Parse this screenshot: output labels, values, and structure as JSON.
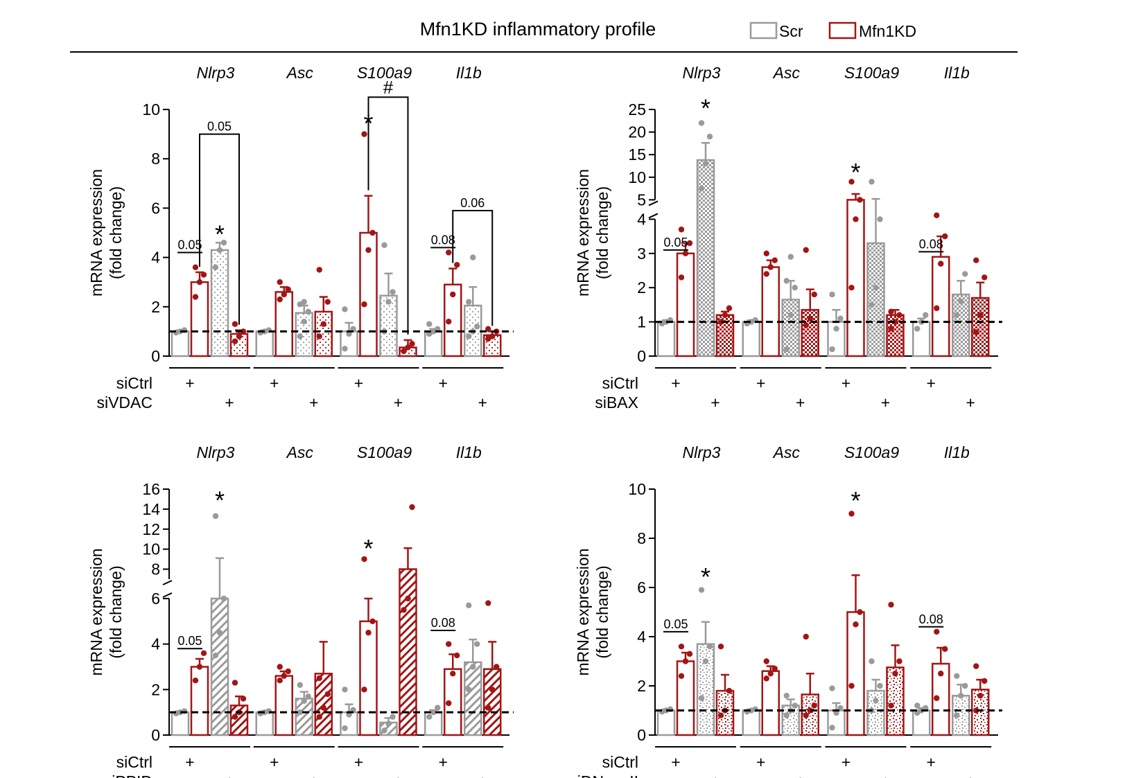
{
  "figure": {
    "title": "Mfn1KD inflammatory profile",
    "legend": [
      {
        "label": "Scr",
        "color": "#888888"
      },
      {
        "label": "Mfn1KD",
        "color": "#a31515"
      }
    ],
    "ylabel_line1": "mRNA expression",
    "ylabel_line2": "(fold change)",
    "row_label_ctrl": "siCtrl",
    "plus": "+"
  },
  "colors": {
    "scr": "#9a9a9a",
    "kd": "#a31515",
    "axis": "#000000"
  },
  "chart_data": [
    {
      "type": "bar",
      "panel": "top-left",
      "genes": [
        "Nlrp3",
        "Asc",
        "S100a9",
        "Il1b"
      ],
      "conditions": [
        "siCtrl",
        "siVDAC"
      ],
      "treatment_label": "siVDAC",
      "pattern": "dots",
      "ylim": [
        0,
        10
      ],
      "yticks": [
        0,
        2,
        4,
        6,
        8,
        10
      ],
      "baseline": 1,
      "series_order": [
        "Scr siCtrl",
        "Mfn1KD siCtrl",
        "Scr treated",
        "Mfn1KD treated"
      ],
      "values": [
        [
          1.0,
          3.0,
          4.3,
          0.9
        ],
        [
          1.0,
          2.6,
          1.75,
          1.8
        ],
        [
          1.0,
          5.0,
          2.45,
          0.35
        ],
        [
          1.0,
          2.9,
          2.05,
          0.85
        ]
      ],
      "errors": [
        [
          0.05,
          0.4,
          0.3,
          0.15
        ],
        [
          0.05,
          0.2,
          0.3,
          0.6
        ],
        [
          0.35,
          1.5,
          0.9,
          0.3
        ],
        [
          0.1,
          0.65,
          0.75,
          0.15
        ]
      ],
      "points": [
        [
          [
            0.95,
            1.0,
            1.05
          ],
          [
            2.4,
            3.0,
            3.3,
            3.6
          ],
          [
            3.6,
            4.3,
            4.6
          ],
          [
            0.6,
            0.8,
            1.0,
            1.3
          ]
        ],
        [
          [
            0.95,
            1.0,
            1.05
          ],
          [
            2.3,
            2.5,
            2.7,
            3.0
          ],
          [
            0.8,
            1.4,
            1.8,
            2.1,
            2.2
          ],
          [
            0.8,
            1.3,
            2.2,
            3.5
          ]
        ],
        [
          [
            0.3,
            0.9,
            1.1,
            1.9
          ],
          [
            2.1,
            4.3,
            5.0,
            9.0
          ],
          [
            1.0,
            2.2,
            2.6,
            4.5
          ],
          [
            0.2,
            0.35,
            0.5
          ]
        ],
        [
          [
            0.9,
            1.0,
            1.1,
            1.3
          ],
          [
            1.4,
            2.5,
            3.7,
            4.2
          ],
          [
            0.8,
            1.0,
            1.2,
            2.2,
            4.0
          ],
          [
            0.7,
            0.8,
            1.0,
            1.1
          ]
        ]
      ],
      "annotations": [
        {
          "text": "0.05",
          "gene": 0,
          "type": "underline",
          "y": 4.2
        },
        {
          "text": "0.05",
          "gene": 0,
          "type": "bracket",
          "y": 9.0,
          "from": 1,
          "to": 3
        },
        {
          "text": "*",
          "gene": 0,
          "bar": 2,
          "y": 4.7
        },
        {
          "text": "*",
          "gene": 2,
          "bar": 1,
          "y": 9.2
        },
        {
          "text": "#",
          "gene": 2,
          "type": "bracket",
          "y": 10.5,
          "from": 1,
          "to": 3
        },
        {
          "text": "0.08",
          "gene": 3,
          "type": "underline",
          "y": 4.4
        },
        {
          "text": "0.06",
          "gene": 3,
          "type": "bracket",
          "y": 5.9,
          "from": 1,
          "to": 3
        }
      ]
    },
    {
      "type": "bar",
      "panel": "top-right",
      "genes": [
        "Nlrp3",
        "Asc",
        "S100a9",
        "Il1b"
      ],
      "conditions": [
        "siCtrl",
        "siBAX"
      ],
      "treatment_label": "siBAX",
      "pattern": "checker",
      "broken_axis": true,
      "ylim_lower": [
        0,
        4
      ],
      "ylim_upper": [
        5,
        25
      ],
      "yticks_lower": [
        0,
        1,
        2,
        3,
        4
      ],
      "yticks_upper": [
        5,
        10,
        15,
        20,
        25
      ],
      "baseline": 1,
      "values": [
        [
          1.0,
          3.0,
          13.8,
          1.2
        ],
        [
          1.0,
          2.6,
          1.65,
          1.35
        ],
        [
          1.0,
          5.0,
          3.3,
          1.2
        ],
        [
          1.0,
          2.9,
          1.8,
          1.7
        ]
      ],
      "errors": [
        [
          0.05,
          0.3,
          3.8,
          0.1
        ],
        [
          0.05,
          0.2,
          0.55,
          0.6
        ],
        [
          0.35,
          1.3,
          1.9,
          0.15
        ],
        [
          0.1,
          0.6,
          0.4,
          0.45
        ]
      ],
      "points": [
        [
          [
            0.95,
            1.0,
            1.05
          ],
          [
            2.3,
            3.0,
            3.3,
            3.7
          ],
          [
            7.5,
            13.0,
            19.0,
            22.0
          ],
          [
            1.0,
            1.2,
            1.4
          ]
        ],
        [
          [
            0.95,
            1.0,
            1.05
          ],
          [
            2.4,
            2.6,
            2.8,
            3.0
          ],
          [
            0.2,
            1.2,
            2.0,
            2.2,
            2.9
          ],
          [
            0.9,
            1.1,
            1.8,
            3.1
          ]
        ],
        [
          [
            0.2,
            0.8,
            1.1,
            1.8
          ],
          [
            2.0,
            4.0,
            5.0,
            9.0
          ],
          [
            1.5,
            2.0,
            4.0,
            9.0
          ],
          [
            0.8,
            1.0,
            1.2,
            1.3
          ]
        ],
        [
          [
            0.8,
            1.0,
            1.2
          ],
          [
            1.4,
            2.7,
            3.5,
            4.2
          ],
          [
            1.2,
            1.6,
            2.4
          ],
          [
            0.7,
            1.2,
            2.3,
            2.8
          ]
        ]
      ],
      "annotations": [
        {
          "text": "0.05",
          "gene": 0,
          "type": "underline",
          "y": 3.1
        },
        {
          "text": "*",
          "gene": 0,
          "bar": 2,
          "y": 24
        },
        {
          "text": "*",
          "gene": 2,
          "bar": 1,
          "y": 9.8
        },
        {
          "text": "0.08",
          "gene": 3,
          "type": "underline",
          "y": 3.05
        }
      ]
    },
    {
      "type": "bar",
      "panel": "bottom-left",
      "genes": [
        "Nlrp3",
        "Asc",
        "S100a9",
        "Il1b"
      ],
      "conditions": [
        "siCtrl",
        "siPPID"
      ],
      "treatment_label": "siPPID",
      "pattern": "hatch",
      "broken_axis": true,
      "ylim_lower": [
        0,
        6
      ],
      "ylim_upper": [
        7,
        16
      ],
      "yticks_lower": [
        0,
        2,
        4,
        6
      ],
      "yticks_upper": [
        8,
        10,
        12,
        14,
        16
      ],
      "baseline": 1,
      "values": [
        [
          1.0,
          3.0,
          6.0,
          1.3
        ],
        [
          1.0,
          2.6,
          1.6,
          2.7
        ],
        [
          1.0,
          5.0,
          0.55,
          8.0
        ],
        [
          1.0,
          2.9,
          3.2,
          2.9
        ]
      ],
      "errors": [
        [
          0.05,
          0.35,
          3.1,
          0.4
        ],
        [
          0.05,
          0.2,
          0.3,
          1.4
        ],
        [
          0.35,
          1.0,
          0.2,
          2.1
        ],
        [
          0.1,
          0.65,
          1.0,
          1.2
        ]
      ],
      "points": [
        [
          [
            0.95,
            1.0,
            1.05
          ],
          [
            2.4,
            3.0,
            3.6
          ],
          [
            3.5,
            4.5,
            6.0,
            13.3
          ],
          [
            0.8,
            1.0,
            1.6,
            2.3
          ]
        ],
        [
          [
            0.95,
            1.0,
            1.05
          ],
          [
            2.4,
            2.6,
            2.8,
            3.0
          ],
          [
            1.0,
            1.5,
            1.7,
            2.2
          ],
          [
            0.8,
            1.2,
            1.8,
            2.5
          ]
        ],
        [
          [
            0.3,
            0.9,
            1.1,
            2.0
          ],
          [
            2.0,
            4.5,
            5.0,
            9.0
          ],
          [
            0.2,
            0.5,
            0.8
          ],
          [
            5.5,
            6.0,
            14.2
          ]
        ],
        [
          [
            0.8,
            1.0,
            1.2
          ],
          [
            1.4,
            2.7,
            3.5,
            4.0
          ],
          [
            2.0,
            3.0,
            4.0,
            5.7
          ],
          [
            1.2,
            2.0,
            3.0,
            5.8
          ]
        ]
      ],
      "annotations": [
        {
          "text": "0.05",
          "gene": 0,
          "type": "underline",
          "y": 3.8
        },
        {
          "text": "*",
          "gene": 0,
          "bar": 2,
          "y": 14.3
        },
        {
          "text": "*",
          "gene": 2,
          "bar": 1,
          "y": 9.5
        },
        {
          "text": "0.08",
          "gene": 3,
          "type": "underline",
          "y": 4.6
        }
      ]
    },
    {
      "type": "bar",
      "panel": "bottom-right",
      "genes": [
        "Nlrp3",
        "Asc",
        "S100a9",
        "Il1b"
      ],
      "conditions": [
        "siCtrl",
        "siDNaseII"
      ],
      "treatment_label": "siDNaseII",
      "pattern": "speckle",
      "ylim": [
        0,
        10
      ],
      "yticks": [
        0,
        2,
        4,
        6,
        8,
        10
      ],
      "baseline": 1,
      "values": [
        [
          1.0,
          3.0,
          3.7,
          1.8
        ],
        [
          1.0,
          2.6,
          1.2,
          1.65
        ],
        [
          1.0,
          5.0,
          1.8,
          2.75
        ],
        [
          1.0,
          2.9,
          1.6,
          1.85
        ]
      ],
      "errors": [
        [
          0.05,
          0.35,
          0.9,
          0.65
        ],
        [
          0.05,
          0.2,
          0.25,
          0.85
        ],
        [
          0.3,
          1.5,
          0.45,
          0.9
        ],
        [
          0.1,
          0.65,
          0.45,
          0.4
        ]
      ],
      "points": [
        [
          [
            0.95,
            1.0,
            1.05
          ],
          [
            2.4,
            3.0,
            3.3,
            3.6
          ],
          [
            1.5,
            3.0,
            3.6,
            5.9
          ],
          [
            0.8,
            1.0,
            1.8,
            3.6
          ]
        ],
        [
          [
            0.95,
            1.0,
            1.05
          ],
          [
            2.3,
            2.5,
            2.7,
            3.0
          ],
          [
            0.8,
            1.0,
            1.2,
            1.6
          ],
          [
            0.8,
            1.0,
            1.2,
            4.0
          ]
        ],
        [
          [
            0.3,
            0.9,
            1.1,
            1.9
          ],
          [
            2.0,
            4.5,
            5.0,
            9.0
          ],
          [
            1.0,
            1.4,
            2.0,
            3.0
          ],
          [
            1.2,
            2.5,
            3.0,
            5.3
          ]
        ],
        [
          [
            0.9,
            1.0,
            1.1,
            1.2
          ],
          [
            1.5,
            2.5,
            3.5,
            4.2
          ],
          [
            0.8,
            1.6,
            2.0,
            2.4
          ],
          [
            1.0,
            1.6,
            2.2,
            2.8
          ]
        ]
      ],
      "annotations": [
        {
          "text": "0.05",
          "gene": 0,
          "type": "underline",
          "y": 4.2
        },
        {
          "text": "*",
          "gene": 0,
          "bar": 2,
          "y": 6.2
        },
        {
          "text": "*",
          "gene": 2,
          "bar": 1,
          "y": 9.3
        },
        {
          "text": "0.08",
          "gene": 3,
          "type": "underline",
          "y": 4.4
        }
      ]
    }
  ]
}
